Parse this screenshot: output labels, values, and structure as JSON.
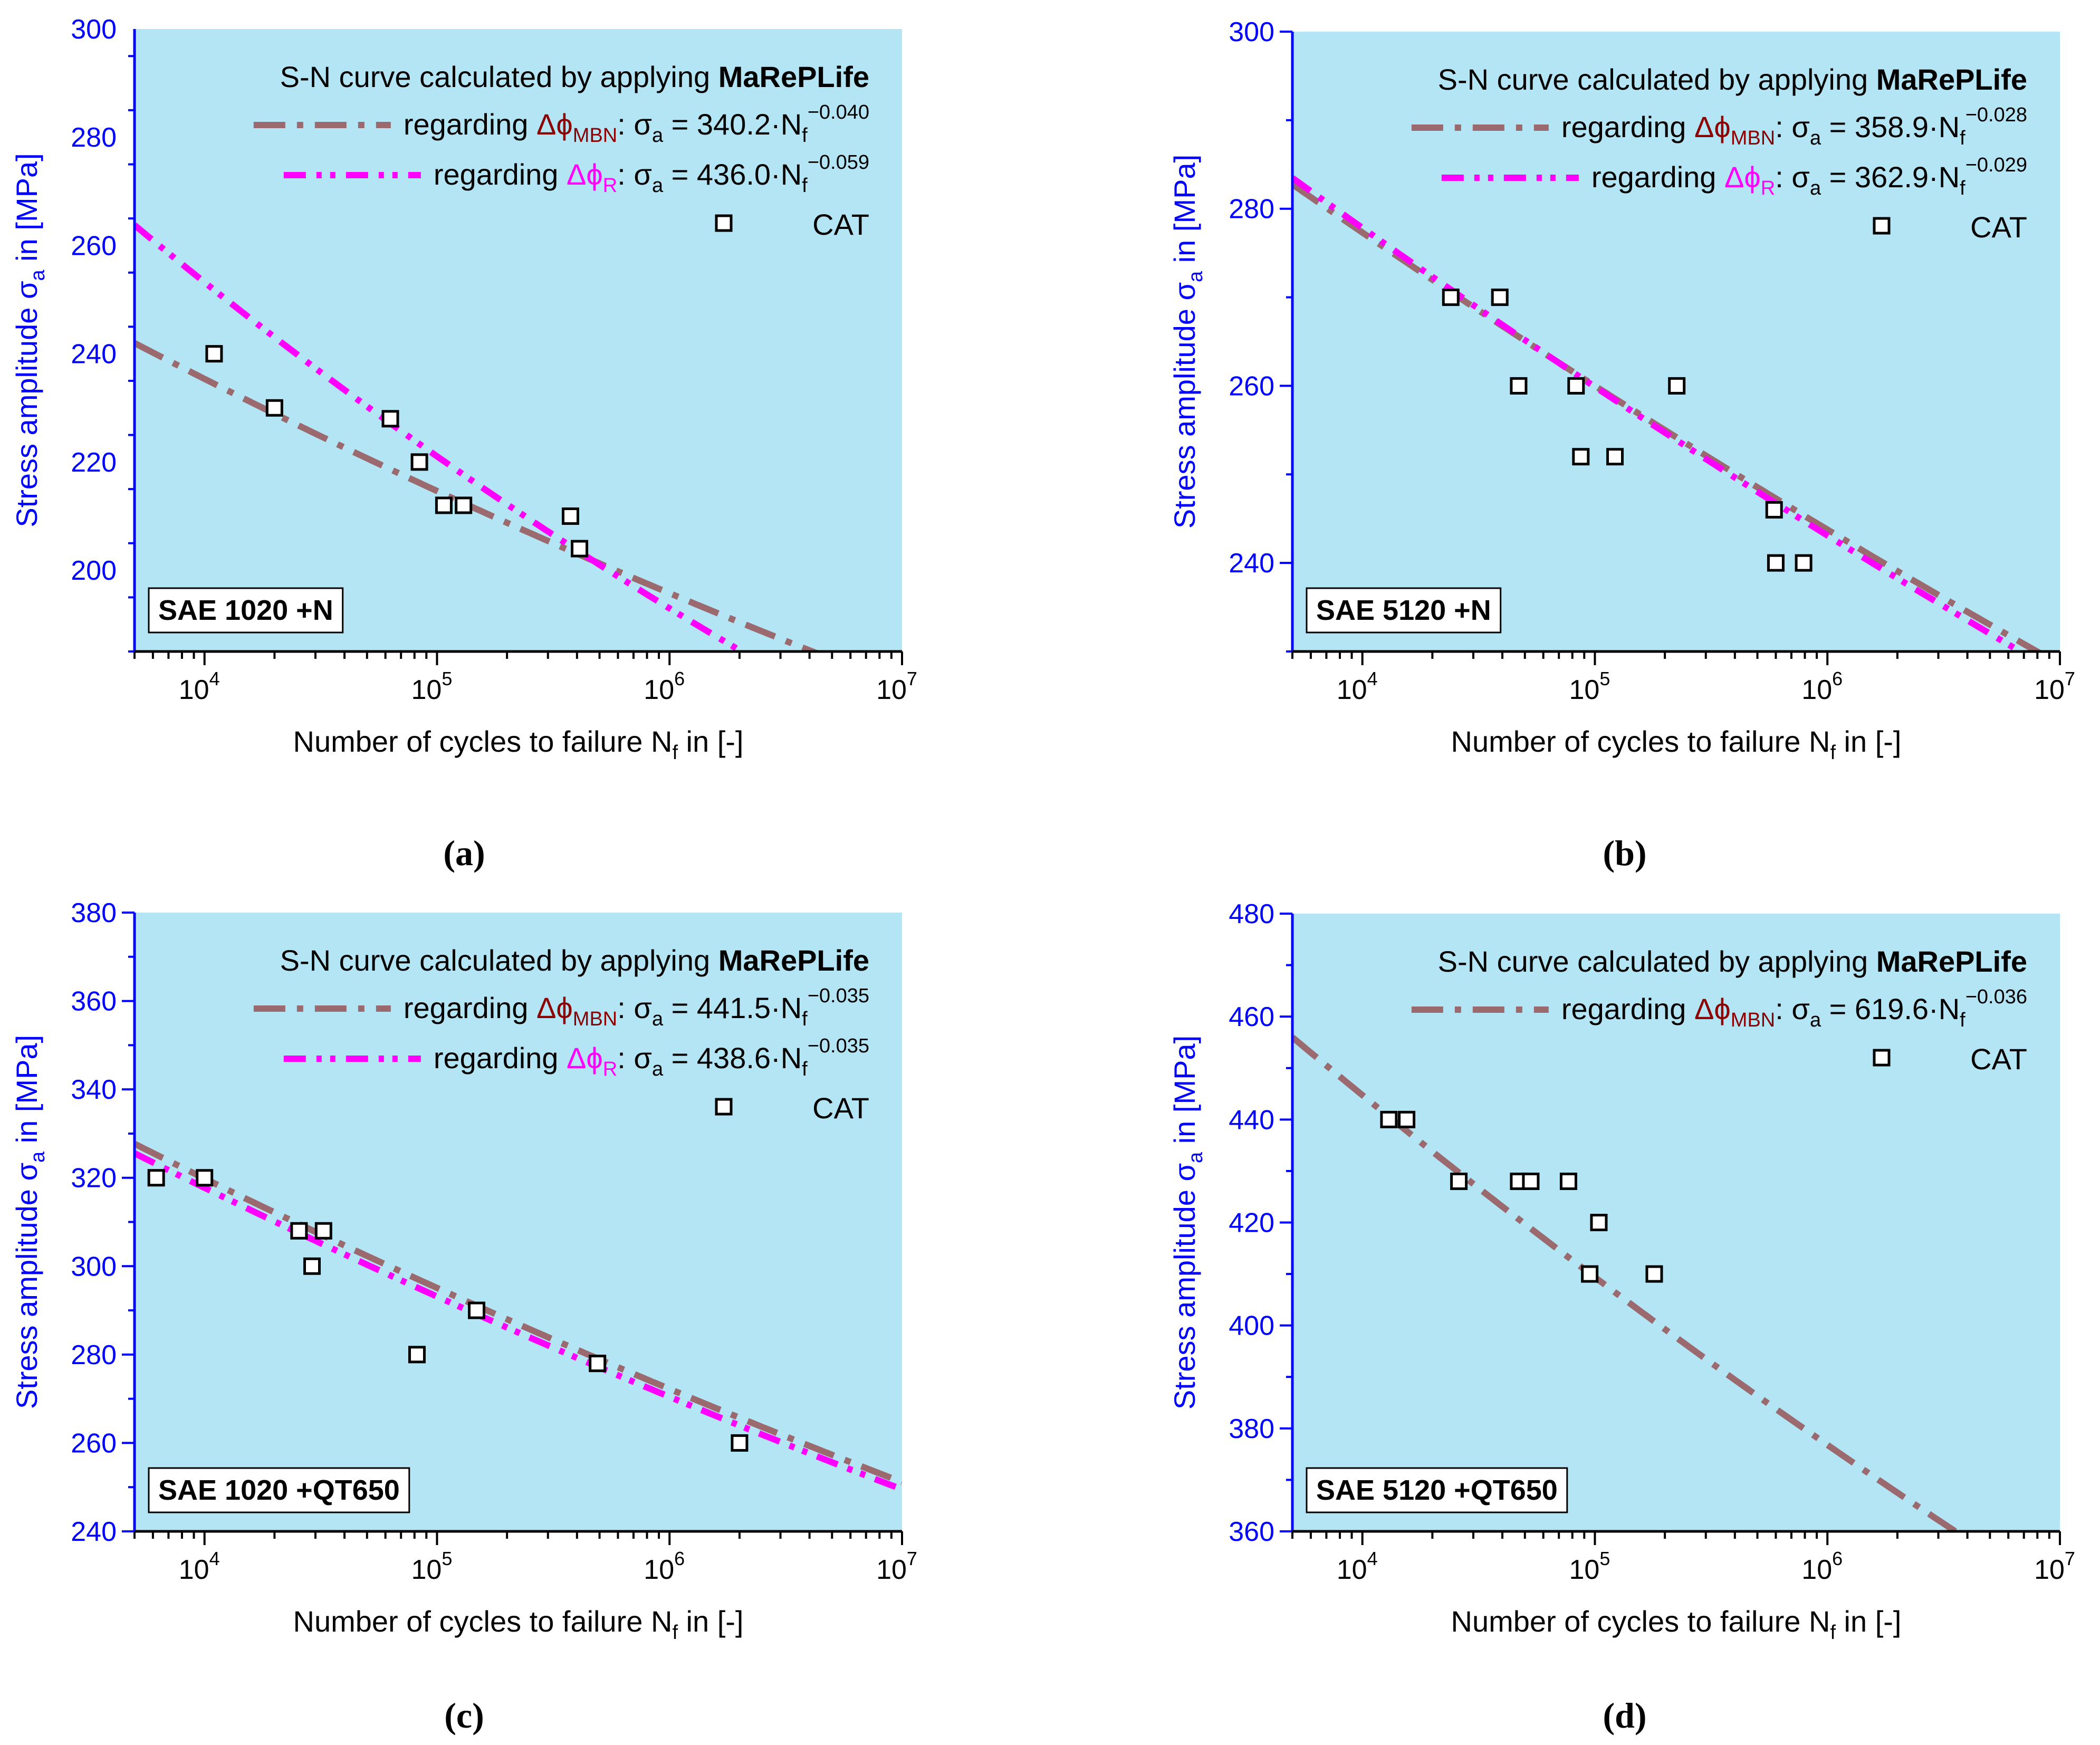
{
  "colors": {
    "plot_background": "#b3e5f5",
    "axis": "#0000ff",
    "mbn_line": "#9a6a6e",
    "r_line": "#ff00ff",
    "mbn_label": "#8b0000",
    "r_label": "#ff00ff",
    "marker_fill": "#ffffff",
    "marker_stroke": "#000000"
  },
  "common": {
    "xlabel_main": "Number of cycles to failure N",
    "xlabel_sub": "f",
    "xlabel_tail": " in [-]",
    "ylabel_main": "Stress amplitude σ",
    "ylabel_sub": "a",
    "ylabel_tail": " in [MPa]",
    "legend_title_prefix": "S-N curve calculated by applying ",
    "legend_title_bold": "MaRePLife",
    "regarding": "regarding ",
    "delta_phi": "Δϕ",
    "mbn_sub": "MBN",
    "r_sub": "R",
    "sigma": "σ",
    "sigma_sub": "a",
    "eq_mid": " = ",
    "eq_N": "·N",
    "eq_N_sub": "f",
    "cat_label": "CAT",
    "base": "10"
  },
  "chart_data": [
    {
      "panel_label": "(a)",
      "type": "scatter",
      "material": "SAE 1020 +N",
      "xscale": "log",
      "xlim": [
        5000,
        10000000
      ],
      "ylim": [
        185,
        300
      ],
      "yticks": [
        200,
        220,
        240,
        260,
        280,
        300
      ],
      "xtick_exponents": [
        4,
        5,
        6,
        7
      ],
      "series": [
        {
          "name": "MBN",
          "kind": "line",
          "coef": "340.2",
          "exponent_label": "−0.040",
          "a": 340.2,
          "b": -0.04
        },
        {
          "name": "R",
          "kind": "line",
          "coef": "436.0",
          "exponent_label": "−0.059",
          "a": 436.0,
          "b": -0.059
        },
        {
          "name": "CAT",
          "kind": "points",
          "points": [
            [
              11000,
              240
            ],
            [
              20000,
              230
            ],
            [
              63000,
              228
            ],
            [
              84000,
              220
            ],
            [
              107000,
              212
            ],
            [
              130000,
              212
            ],
            [
              375000,
              210
            ],
            [
              410000,
              204
            ]
          ]
        }
      ]
    },
    {
      "panel_label": "(b)",
      "type": "scatter",
      "material": "SAE 5120 +N",
      "xscale": "log",
      "xlim": [
        5000,
        10000000
      ],
      "ylim": [
        230,
        300
      ],
      "yticks": [
        240,
        260,
        280,
        300
      ],
      "xtick_exponents": [
        4,
        5,
        6,
        7
      ],
      "series": [
        {
          "name": "MBN",
          "kind": "line",
          "coef": "358.9",
          "exponent_label": "−0.028",
          "a": 358.9,
          "b": -0.028
        },
        {
          "name": "R",
          "kind": "line",
          "coef": "362.9",
          "exponent_label": "−0.029",
          "a": 362.9,
          "b": -0.029
        },
        {
          "name": "CAT",
          "kind": "points",
          "points": [
            [
              24000,
              270
            ],
            [
              39000,
              270
            ],
            [
              47000,
              260
            ],
            [
              83000,
              260
            ],
            [
              87000,
              252
            ],
            [
              122000,
              252
            ],
            [
              225000,
              260
            ],
            [
              590000,
              246
            ],
            [
              600000,
              240
            ],
            [
              790000,
              240
            ]
          ]
        }
      ]
    },
    {
      "panel_label": "(c)",
      "type": "scatter",
      "material": "SAE 1020 +QT650",
      "xscale": "log",
      "xlim": [
        5000,
        10000000
      ],
      "ylim": [
        240,
        380
      ],
      "yticks": [
        240,
        260,
        280,
        300,
        320,
        340,
        360,
        380
      ],
      "xtick_exponents": [
        4,
        5,
        6,
        7
      ],
      "series": [
        {
          "name": "MBN",
          "kind": "line",
          "coef": "441.5",
          "exponent_label": "−0.035",
          "a": 441.5,
          "b": -0.035
        },
        {
          "name": "R",
          "kind": "line",
          "coef": "438.6",
          "exponent_label": "−0.035",
          "a": 438.6,
          "b": -0.035
        },
        {
          "name": "CAT",
          "kind": "points",
          "points": [
            [
              6200,
              320
            ],
            [
              10000,
              320
            ],
            [
              25500,
              308
            ],
            [
              32500,
              308
            ],
            [
              29000,
              300
            ],
            [
              82000,
              280
            ],
            [
              148000,
              290
            ],
            [
              490000,
              278
            ],
            [
              2000000,
              260
            ]
          ]
        }
      ]
    },
    {
      "panel_label": "(d)",
      "type": "scatter",
      "material": "SAE 5120 +QT650",
      "xscale": "log",
      "xlim": [
        5000,
        10000000
      ],
      "ylim": [
        360,
        480
      ],
      "yticks": [
        360,
        380,
        400,
        420,
        440,
        460,
        480
      ],
      "xtick_exponents": [
        4,
        5,
        6,
        7
      ],
      "series": [
        {
          "name": "MBN",
          "kind": "line",
          "coef": "619.6",
          "exponent_label": "−0.036",
          "a": 619.6,
          "b": -0.036
        },
        {
          "name": "CAT",
          "kind": "points",
          "points": [
            [
              13000,
              440
            ],
            [
              15500,
              440
            ],
            [
              26000,
              428
            ],
            [
              47000,
              428
            ],
            [
              53000,
              428
            ],
            [
              77000,
              428
            ],
            [
              104000,
              420
            ],
            [
              95000,
              410
            ],
            [
              180000,
              410
            ]
          ]
        }
      ]
    }
  ]
}
